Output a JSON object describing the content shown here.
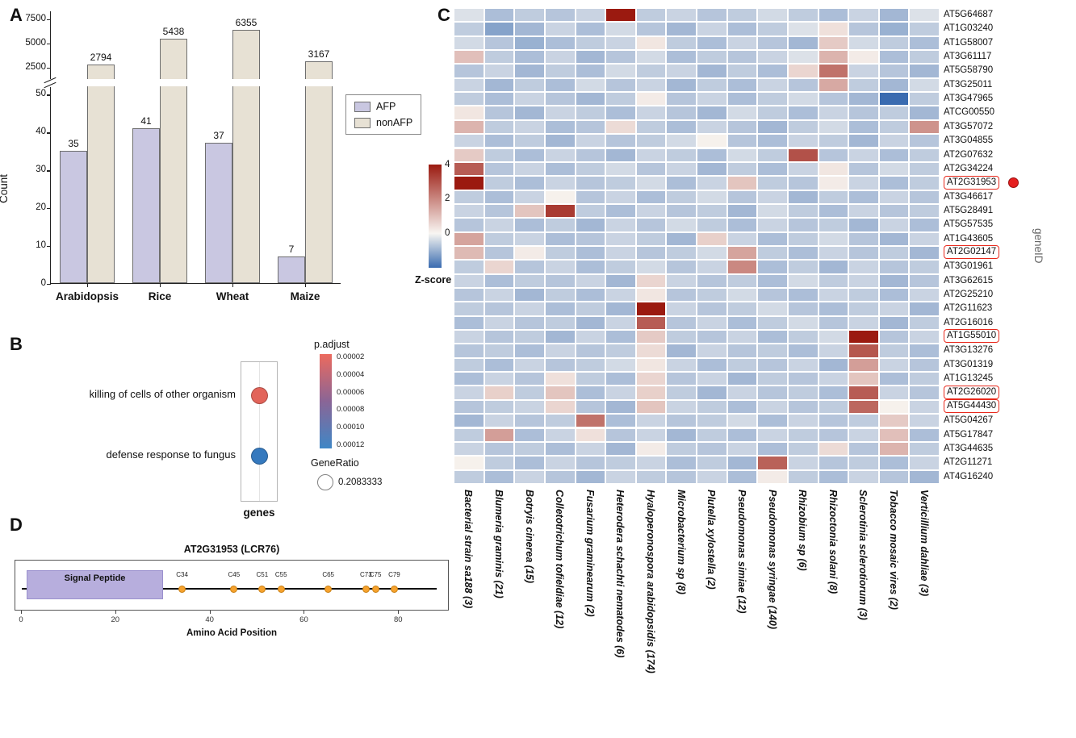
{
  "panel_labels": {
    "a": "A",
    "b": "B",
    "c": "C",
    "d": "D"
  },
  "colors": {
    "afp_fill": "#c9c7e1",
    "nonafp_fill": "#e7e1d4",
    "bar_border": "#6e6e6e",
    "heat_neg": "#3a6bb0",
    "heat_mid": "#f8f6f2",
    "heat_pos": "#9b1a10",
    "padjust_top": "#ec6a5e",
    "padjust_mid": "#8a6596",
    "padjust_bottom": "#3f87c6",
    "signal_peptide_fill": "#b7aedd",
    "signal_peptide_border": "#9a90ce",
    "cysteine_fill": "#f6a22d",
    "cysteine_border": "#c97f12",
    "highlight_red": "#e8291c",
    "red_marker_fill": "#e51f1f"
  },
  "chart_data": [
    {
      "id": "A",
      "type": "bar",
      "ylabel": "Count",
      "categories": [
        "Arabidopsis",
        "Rice",
        "Wheat",
        "Maize"
      ],
      "series": [
        {
          "name": "AFP",
          "values": [
            35,
            41,
            37,
            7
          ]
        },
        {
          "name": "nonAFP",
          "values": [
            2794,
            5438,
            6355,
            3167
          ]
        }
      ],
      "broken_axis": {
        "lower_ylim": [
          0,
          52
        ],
        "lower_ticks": [
          0,
          10,
          20,
          30,
          40,
          50
        ],
        "upper_ylim": [
          1300,
          8300
        ],
        "upper_ticks": [
          2500,
          5000,
          7500
        ]
      },
      "legend_position": "right"
    },
    {
      "id": "B",
      "type": "scatter",
      "xlabel": "genes",
      "terms": [
        {
          "label": "killing of cells of other organism",
          "dot_color": "#e2645a"
        },
        {
          "label": "defense response to fungus",
          "dot_color": "#3579be"
        }
      ],
      "legend": {
        "p_adjust_title": "p.adjust",
        "p_adjust_ticks": [
          "0.00002",
          "0.00004",
          "0.00006",
          "0.00008",
          "0.00010",
          "0.00012"
        ],
        "gene_ratio_title": "GeneRatio",
        "gene_ratio_value": "0.2083333"
      }
    },
    {
      "id": "C",
      "type": "heatmap",
      "colorbar_title": "Z-score",
      "colorbar_ticks": [
        4,
        2,
        0
      ],
      "right_axis_label": "geneID",
      "zmin": -2,
      "zmax": 4,
      "boxed_rows": [
        "AT2G31953",
        "AT2G02147",
        "AT1G55010",
        "AT2G26020",
        "AT5G44430"
      ],
      "red_dot_row": "AT2G31953",
      "rows": [
        "AT5G64687",
        "AT1G03240",
        "AT1G58007",
        "AT3G61117",
        "AT5G58790",
        "AT3G25011",
        "AT3G47965",
        "ATCG00550",
        "AT3G57072",
        "AT3G04855",
        "AT2G07632",
        "AT2G34224",
        "AT2G31953",
        "AT3G46617",
        "AT5G28491",
        "AT5G57535",
        "AT1G43605",
        "AT2G02147",
        "AT3G01961",
        "AT3G62615",
        "AT2G25210",
        "AT2G11623",
        "AT2G16016",
        "AT1G55010",
        "AT3G13276",
        "AT3G01319",
        "AT1G13245",
        "AT2G26020",
        "AT5G44430",
        "AT5G04267",
        "AT5G17847",
        "AT3G44635",
        "AT2G11271",
        "AT4G16240"
      ],
      "columns": [
        "Bacterial strain sa188 (3)",
        "Blumeria graminis (21)",
        "Botryis cinerea (15)",
        "Colletotrichum tofieldiae (12)",
        "Fusarium graminearum (2)",
        "Heterodera schachti nematodes (6)",
        "Hyaloperonospora arabidopsidis (174)",
        "Microbacterium sp (8)",
        "Plutella xylostella (2)",
        "Pseudomonas simiae (12)",
        "Pseudomonas syringae (140)",
        "Rhizobium sp (6)",
        "Rhizoctonia solani (8)",
        "Sclerotinia sclerotiorum (3)",
        "Tobacco mosaic vires (2)",
        "Verticillium dahliae (3)"
      ],
      "values": [
        [
          -0.3,
          -0.8,
          -0.6,
          -0.7,
          -0.5,
          4,
          -0.6,
          -0.5,
          -0.7,
          -0.6,
          -0.4,
          -0.6,
          -0.8,
          -0.5,
          -0.9,
          -0.3
        ],
        [
          -0.6,
          -1.2,
          -0.9,
          -0.5,
          -0.8,
          -0.4,
          -0.7,
          -0.9,
          -0.5,
          -0.8,
          -0.6,
          -0.3,
          0.4,
          -0.7,
          -1.0,
          -0.6
        ],
        [
          -0.4,
          -0.7,
          -1.0,
          -0.8,
          -0.6,
          -0.5,
          0.3,
          -0.6,
          -0.8,
          -0.5,
          -0.7,
          -0.9,
          0.8,
          -0.4,
          -0.6,
          -0.8
        ],
        [
          1.0,
          -0.6,
          -0.8,
          -0.5,
          -0.9,
          -0.7,
          -0.4,
          -0.8,
          -0.6,
          -0.7,
          -0.5,
          -0.3,
          1.2,
          0.2,
          -0.8,
          -0.6
        ],
        [
          -0.7,
          -0.5,
          -0.9,
          -0.6,
          -0.8,
          -0.4,
          -0.6,
          -0.5,
          -0.9,
          -0.6,
          -0.8,
          0.6,
          2.4,
          -0.5,
          -0.7,
          -0.9
        ],
        [
          -0.5,
          -0.9,
          -0.6,
          -0.8,
          -0.4,
          -0.7,
          -0.5,
          -0.9,
          -0.6,
          -0.8,
          -0.5,
          -0.7,
          1.4,
          -0.6,
          -0.9,
          -0.4
        ],
        [
          -0.6,
          -0.8,
          -0.5,
          -0.7,
          -0.9,
          -0.6,
          0.2,
          -0.7,
          -0.5,
          -0.8,
          -0.6,
          -0.4,
          -0.7,
          -0.9,
          -2.0,
          -0.6
        ],
        [
          0.3,
          -0.7,
          -0.9,
          -0.5,
          -0.6,
          -0.8,
          -0.5,
          -0.7,
          -0.9,
          -0.4,
          -0.6,
          -0.8,
          -0.5,
          -0.7,
          -0.6,
          -0.9
        ],
        [
          1.2,
          -0.6,
          -0.5,
          -0.8,
          -0.7,
          0.5,
          -0.6,
          -0.8,
          -0.5,
          -0.7,
          -0.9,
          -0.6,
          -0.4,
          -0.8,
          -0.6,
          1.8
        ],
        [
          -0.5,
          -0.8,
          -0.6,
          -0.9,
          -0.5,
          -0.7,
          -0.6,
          -0.4,
          0.1,
          -0.7,
          -0.8,
          -0.5,
          -0.6,
          -0.9,
          -0.5,
          -0.7
        ],
        [
          0.8,
          -0.6,
          -0.8,
          -0.5,
          -0.7,
          -0.9,
          -0.5,
          -0.6,
          -0.8,
          -0.4,
          -0.6,
          3.0,
          -0.7,
          -0.5,
          -0.8,
          -0.6
        ],
        [
          2.8,
          -0.7,
          -0.5,
          -0.8,
          -0.6,
          -0.4,
          -0.7,
          -0.5,
          -0.9,
          -0.6,
          -0.8,
          -0.5,
          0.3,
          -0.7,
          -0.4,
          -0.6
        ],
        [
          4.0,
          -0.6,
          -0.8,
          -0.5,
          -0.7,
          -0.6,
          -0.4,
          -0.8,
          -0.5,
          0.9,
          -0.6,
          -0.7,
          0.2,
          -0.5,
          -0.8,
          -0.6
        ],
        [
          -0.6,
          -0.8,
          -0.5,
          0.1,
          -0.7,
          -0.5,
          -0.8,
          -0.6,
          -0.4,
          -0.7,
          -0.5,
          -0.9,
          -0.6,
          -0.8,
          -0.5,
          -0.7
        ],
        [
          -0.5,
          -0.7,
          0.9,
          3.4,
          -0.6,
          -0.8,
          -0.5,
          -0.7,
          -0.6,
          -0.9,
          -0.4,
          -0.6,
          -0.8,
          -0.5,
          -0.7,
          -0.6
        ],
        [
          -0.7,
          -0.5,
          -0.8,
          -0.6,
          -0.9,
          -0.5,
          -0.7,
          -0.4,
          -0.6,
          -0.8,
          -0.5,
          -0.7,
          -0.6,
          -0.9,
          -0.5,
          -0.8
        ],
        [
          1.5,
          -0.6,
          -0.5,
          -0.8,
          -0.7,
          -0.5,
          -0.6,
          -0.9,
          0.7,
          -0.5,
          -0.8,
          -0.6,
          -0.4,
          -0.7,
          -0.9,
          -0.5
        ],
        [
          1.1,
          -0.7,
          0.2,
          -0.6,
          -0.8,
          -0.5,
          -0.7,
          -0.6,
          -0.4,
          1.5,
          -0.6,
          -0.8,
          -0.5,
          -0.7,
          -0.6,
          -0.9
        ],
        [
          -0.6,
          0.6,
          -0.7,
          -0.5,
          -0.8,
          -0.6,
          -0.4,
          -0.7,
          -0.5,
          2.0,
          -0.8,
          -0.6,
          -0.9,
          -0.5,
          -0.7,
          -0.6
        ],
        [
          -0.5,
          -0.8,
          -0.6,
          -0.7,
          -0.5,
          -0.9,
          0.6,
          -0.5,
          -0.7,
          -0.6,
          -0.8,
          -0.4,
          -0.6,
          -0.5,
          -0.9,
          -0.7
        ],
        [
          -0.7,
          -0.5,
          -0.9,
          -0.6,
          -0.8,
          -0.5,
          0.3,
          -0.7,
          -0.6,
          -0.4,
          -0.7,
          -0.8,
          -0.5,
          -0.6,
          -0.8,
          -0.5
        ],
        [
          -0.6,
          -0.7,
          -0.5,
          -0.8,
          -0.6,
          -0.9,
          4.0,
          -0.5,
          -0.7,
          -0.6,
          -0.4,
          -0.7,
          -0.8,
          -0.6,
          -0.5,
          -0.9
        ],
        [
          -0.8,
          -0.5,
          -0.7,
          -0.6,
          -0.9,
          -0.5,
          2.8,
          -0.7,
          -0.5,
          -0.8,
          -0.6,
          -0.4,
          -0.7,
          -0.5,
          -0.9,
          -0.6
        ],
        [
          -0.5,
          -0.7,
          -0.6,
          -0.9,
          -0.5,
          -0.8,
          0.8,
          -0.6,
          -0.7,
          -0.5,
          -0.8,
          -0.6,
          -0.4,
          4.0,
          -0.7,
          -0.5
        ],
        [
          -0.7,
          -0.6,
          -0.8,
          -0.5,
          -0.7,
          -0.6,
          0.5,
          -0.9,
          -0.5,
          -0.7,
          -0.6,
          -0.8,
          -0.5,
          2.9,
          -0.6,
          -0.8
        ],
        [
          -0.6,
          -0.8,
          -0.5,
          -0.7,
          -0.6,
          -0.4,
          0.3,
          -0.5,
          -0.8,
          -0.6,
          -0.7,
          -0.5,
          -0.9,
          1.6,
          -0.5,
          -0.7
        ],
        [
          -0.8,
          -0.5,
          -0.7,
          0.4,
          -0.6,
          -0.8,
          0.6,
          -0.7,
          -0.5,
          -0.9,
          -0.6,
          -0.7,
          -0.5,
          0.9,
          -0.8,
          -0.6
        ],
        [
          -0.5,
          0.7,
          -0.6,
          0.9,
          -0.8,
          -0.5,
          0.7,
          -0.6,
          -0.9,
          -0.5,
          -0.7,
          -0.6,
          -0.8,
          2.8,
          -0.5,
          -0.7
        ],
        [
          -0.7,
          -0.6,
          -0.5,
          0.6,
          -0.7,
          -0.9,
          0.9,
          -0.5,
          -0.6,
          -0.8,
          -0.5,
          -0.7,
          -0.6,
          2.6,
          0.1,
          -0.5
        ],
        [
          -0.9,
          -0.5,
          -0.7,
          -0.6,
          2.4,
          -0.8,
          -0.5,
          -0.7,
          -0.6,
          -0.4,
          -0.8,
          -0.5,
          -0.7,
          -0.6,
          0.8,
          -0.5
        ],
        [
          -0.6,
          1.6,
          -0.8,
          -0.5,
          0.4,
          -0.7,
          -0.5,
          -0.9,
          -0.6,
          -0.8,
          -0.5,
          -0.6,
          -0.7,
          -0.5,
          1.0,
          -0.8
        ],
        [
          -0.5,
          -0.7,
          -0.6,
          -0.8,
          -0.5,
          -0.9,
          0.2,
          -0.6,
          -0.7,
          -0.5,
          -0.8,
          -0.6,
          0.5,
          -0.7,
          1.2,
          -0.6
        ],
        [
          0.1,
          -0.6,
          -0.8,
          -0.5,
          -0.7,
          -0.6,
          -0.5,
          -0.8,
          -0.6,
          -0.9,
          2.7,
          -0.5,
          -0.7,
          -0.6,
          -0.8,
          -0.5
        ],
        [
          -0.6,
          -0.8,
          -0.5,
          -0.7,
          -0.9,
          -0.5,
          -0.6,
          -0.7,
          -0.5,
          -0.8,
          0.2,
          -0.6,
          -0.8,
          -0.5,
          -0.7,
          -0.9
        ]
      ]
    },
    {
      "id": "D",
      "type": "diagram",
      "title": "AT2G31953 (LCR76)",
      "xlabel": "Amino Acid Position",
      "x_ticks": [
        0,
        20,
        40,
        60,
        80
      ],
      "x_range": [
        0,
        88
      ],
      "signal_peptide": {
        "label": "Signal Peptide",
        "start": 1,
        "end": 30
      },
      "cysteines": [
        {
          "label": "C34",
          "pos": 34
        },
        {
          "label": "C45",
          "pos": 45
        },
        {
          "label": "C51",
          "pos": 51
        },
        {
          "label": "C55",
          "pos": 55
        },
        {
          "label": "C65",
          "pos": 65
        },
        {
          "label": "C73",
          "pos": 73
        },
        {
          "label": "C75",
          "pos": 75
        },
        {
          "label": "C79",
          "pos": 79
        }
      ]
    }
  ]
}
